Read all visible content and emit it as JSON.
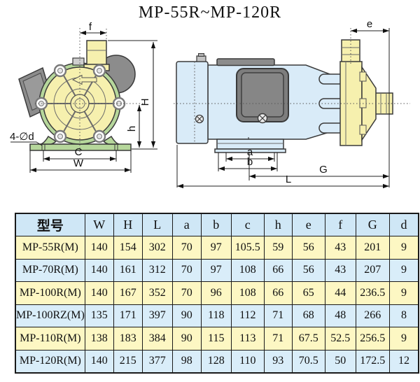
{
  "title": "MP-55R~MP-120R",
  "front_view": {
    "dim_f": "f",
    "dim_H": "H",
    "dim_h": "h",
    "dim_C": "C",
    "dim_W": "W",
    "holes_label": "4-∅d"
  },
  "side_view": {
    "dim_e": "e",
    "dim_a": "a",
    "dim_b": "b",
    "dim_G": "G",
    "dim_L": "L"
  },
  "table": {
    "header_model": "型号",
    "dim_columns": [
      "W",
      "H",
      "L",
      "a",
      "b",
      "c",
      "h",
      "e",
      "f",
      "G",
      "d"
    ],
    "rows": [
      {
        "model": "MP-55R(M)",
        "values": [
          "140",
          "154",
          "302",
          "70",
          "97",
          "105.5",
          "59",
          "56",
          "43",
          "201",
          "9"
        ]
      },
      {
        "model": "MP-70R(M)",
        "values": [
          "140",
          "161",
          "312",
          "70",
          "97",
          "108",
          "66",
          "56",
          "43",
          "207",
          "9"
        ]
      },
      {
        "model": "MP-100R(M)",
        "values": [
          "140",
          "167",
          "352",
          "70",
          "96",
          "108",
          "66",
          "65",
          "44",
          "236.5",
          "9"
        ]
      },
      {
        "model": "MP-100RZ(M)",
        "values": [
          "135",
          "171",
          "397",
          "90",
          "118",
          "112",
          "71",
          "68",
          "48",
          "266",
          "8"
        ]
      },
      {
        "model": "MP-110R(M)",
        "values": [
          "138",
          "183",
          "384",
          "90",
          "115",
          "113",
          "71",
          "67.5",
          "52.5",
          "256.5",
          "9"
        ]
      },
      {
        "model": "MP-120R(M)",
        "values": [
          "140",
          "215",
          "377",
          "98",
          "128",
          "110",
          "93",
          "70.5",
          "50",
          "172.5",
          "12"
        ]
      }
    ]
  },
  "colors": {
    "row_yellow": "#fdf7c3",
    "row_blue": "#d9edf9",
    "header_blue": "#cfe7f6",
    "pump_yellow": "#f6f0ae",
    "pump_green": "#b6d79b",
    "motor_blue": "#d9ebf8",
    "metal_gray": "#8c8c8c"
  }
}
